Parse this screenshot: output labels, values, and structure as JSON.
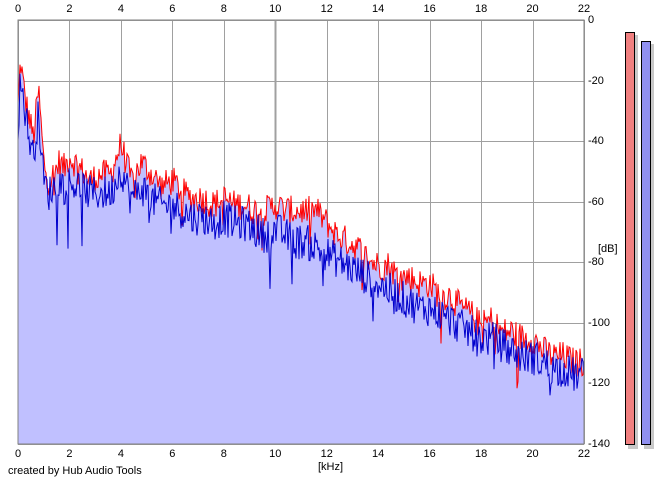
{
  "chart_data": {
    "type": "area",
    "title": "",
    "xlabel": "[kHz]",
    "ylabel": "[dB]",
    "xlim": [
      0,
      22
    ],
    "ylim": [
      -140,
      0
    ],
    "x_ticks": [
      0,
      2,
      4,
      6,
      8,
      10,
      12,
      14,
      16,
      18,
      20,
      22
    ],
    "y_ticks": [
      0,
      -20,
      -40,
      -60,
      -80,
      -100,
      -120,
      -140
    ],
    "grid": true,
    "x_tick_labels_top": [
      "0",
      "2",
      "4",
      "6",
      "8",
      "10",
      "12",
      "14",
      "16",
      "18",
      "20",
      "22"
    ],
    "x_tick_labels_bottom": [
      "0",
      "2",
      "4",
      "6",
      "8",
      "10",
      "12",
      "14",
      "16",
      "18",
      "20",
      "22"
    ],
    "y_tick_labels": [
      "0",
      "-20",
      "-40",
      "-60",
      "-80",
      "-100",
      "-120",
      "-140"
    ],
    "series": [
      {
        "color": "#ff0000",
        "x": [
          0,
          0.1,
          0.2,
          0.3,
          0.4,
          0.5,
          0.6,
          0.7,
          0.8,
          1,
          1.2,
          1.4,
          1.6,
          1.8,
          2,
          2.4,
          2.8,
          3.2,
          3.6,
          4,
          4.4,
          4.8,
          5.2,
          5.6,
          6,
          6.4,
          6.8,
          7.2,
          7.6,
          8,
          8.4,
          8.8,
          9.2,
          9.6,
          10,
          10.4,
          10.8,
          11.2,
          11.6,
          12,
          12.4,
          12.8,
          13.2,
          13.6,
          14,
          14.4,
          14.8,
          15.2,
          15.6,
          16,
          16.4,
          16.8,
          17.2,
          17.6,
          18,
          18.4,
          18.8,
          19.2,
          19.6,
          20,
          20.4,
          20.8,
          21.2,
          21.6,
          22
        ],
        "y": [
          -28,
          -12,
          -20,
          -26,
          -30,
          -34,
          -38,
          -30,
          -22,
          -46,
          -52,
          -50,
          -46,
          -48,
          -44,
          -48,
          -52,
          -50,
          -50,
          -40,
          -52,
          -46,
          -50,
          -54,
          -52,
          -56,
          -58,
          -58,
          -60,
          -58,
          -60,
          -60,
          -62,
          -62,
          -60,
          -62,
          -62,
          -62,
          -62,
          -66,
          -70,
          -72,
          -74,
          -78,
          -80,
          -80,
          -84,
          -84,
          -86,
          -86,
          -90,
          -90,
          -94,
          -96,
          -100,
          -98,
          -102,
          -102,
          -104,
          -104,
          -108,
          -110,
          -110,
          -112,
          -112
        ]
      },
      {
        "color": "#0000cc",
        "x": [
          0,
          0.1,
          0.2,
          0.3,
          0.4,
          0.5,
          0.6,
          0.7,
          0.8,
          1,
          1.2,
          1.4,
          1.6,
          1.8,
          2,
          2.4,
          2.8,
          3.2,
          3.6,
          4,
          4.4,
          4.8,
          5.2,
          5.6,
          6,
          6.4,
          6.8,
          7.2,
          7.6,
          8,
          8.4,
          8.8,
          9.2,
          9.6,
          10,
          10.4,
          10.8,
          11.2,
          11.6,
          12,
          12.4,
          12.8,
          13.2,
          13.6,
          14,
          14.4,
          14.8,
          15.2,
          15.6,
          16,
          16.4,
          16.8,
          17.2,
          17.6,
          18,
          18.4,
          18.8,
          19.2,
          19.6,
          20,
          20.4,
          20.8,
          21.2,
          21.6,
          22
        ],
        "y": [
          -34,
          -18,
          -24,
          -30,
          -36,
          -40,
          -44,
          -36,
          -30,
          -52,
          -56,
          -54,
          -52,
          -54,
          -52,
          -54,
          -56,
          -56,
          -56,
          -48,
          -58,
          -54,
          -58,
          -60,
          -60,
          -62,
          -64,
          -64,
          -66,
          -64,
          -66,
          -66,
          -68,
          -70,
          -68,
          -70,
          -72,
          -72,
          -74,
          -76,
          -78,
          -80,
          -82,
          -84,
          -86,
          -88,
          -90,
          -92,
          -94,
          -94,
          -96,
          -98,
          -100,
          -102,
          -104,
          -104,
          -106,
          -108,
          -110,
          -110,
          -112,
          -114,
          -114,
          -116,
          -116
        ]
      }
    ],
    "fill_color": "#c0c0ff",
    "grid_color": "#a0a0a0",
    "meters": [
      {
        "color": "#f08080",
        "level_db": -4
      },
      {
        "color": "#9090f0",
        "level_db": -7
      }
    ]
  },
  "footer": {
    "credit": "created by Hub Audio Tools"
  }
}
